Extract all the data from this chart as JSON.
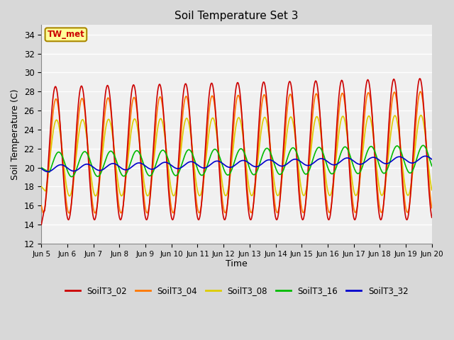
{
  "title": "Soil Temperature Set 3",
  "xlabel": "Time",
  "ylabel": "Soil Temperature (C)",
  "ylim": [
    12,
    35
  ],
  "yticks": [
    12,
    14,
    16,
    18,
    20,
    22,
    24,
    26,
    28,
    30,
    32,
    34
  ],
  "fig_bg": "#d8d8d8",
  "plot_bg": "#f0f0f0",
  "grid_color": "#ffffff",
  "series_colors": {
    "SoilT3_02": "#cc0000",
    "SoilT3_04": "#ff7700",
    "SoilT3_08": "#ddcc00",
    "SoilT3_16": "#00bb00",
    "SoilT3_32": "#0000cc"
  },
  "annotation_text": "TW_met",
  "annotation_color": "#cc0000",
  "annotation_bg": "#ffff99",
  "annotation_border": "#aa8800",
  "x_tick_labels": [
    "Jun 5",
    "Jun 6",
    "Jun 7",
    "Jun 8",
    "Jun 9",
    "Jun 10",
    "Jun 11",
    "Jun 12",
    "Jun 13",
    "Jun 14",
    "Jun 15",
    "Jun 16",
    "Jun 17",
    "Jun 18",
    "Jun 19",
    "Jun 20"
  ],
  "line_width": 1.2
}
